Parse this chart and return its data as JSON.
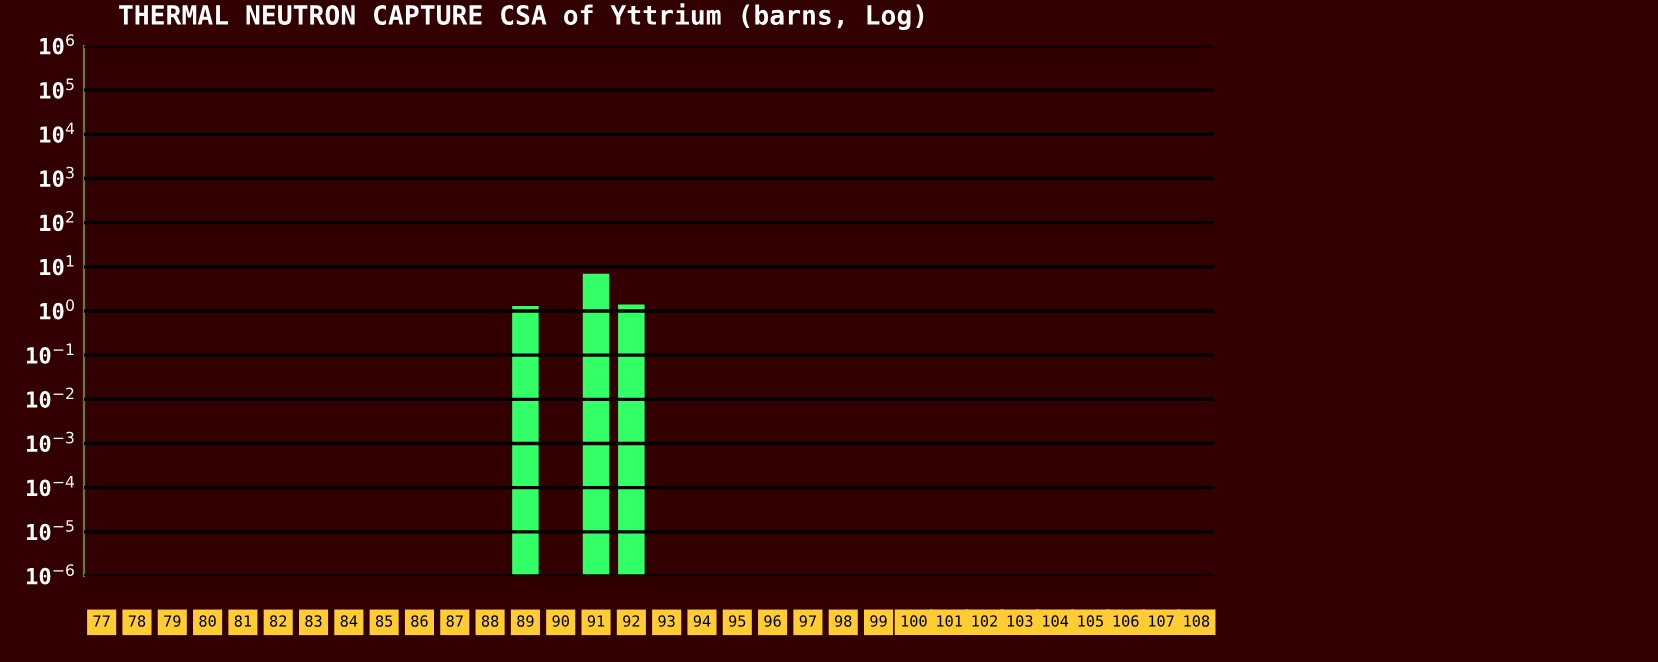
{
  "chart_data": {
    "type": "bar",
    "title": "THERMAL NEUTRON CAPTURE CSA of Yttrium (barns, Log)",
    "categories": [
      "77",
      "78",
      "79",
      "80",
      "81",
      "82",
      "83",
      "84",
      "85",
      "86",
      "87",
      "88",
      "89",
      "90",
      "91",
      "92",
      "93",
      "94",
      "95",
      "96",
      "97",
      "98",
      "99",
      "100",
      "101",
      "102",
      "103",
      "104",
      "105",
      "106",
      "107",
      "108"
    ],
    "values": [
      null,
      null,
      null,
      null,
      null,
      null,
      null,
      null,
      null,
      null,
      null,
      null,
      1.3,
      null,
      7,
      1.4,
      null,
      null,
      null,
      null,
      null,
      null,
      null,
      null,
      null,
      null,
      null,
      null,
      null,
      null,
      null,
      null
    ],
    "color": "#33ff66",
    "log": true,
    "grid": "y",
    "ylim": [
      1e-06,
      1000000.0
    ],
    "yticks": [
      {
        "value": 1e-06,
        "label": "10$^{−6}$"
      },
      {
        "value": 1e-05,
        "label": "10$^{−5}$"
      },
      {
        "value": 0.0001,
        "label": "10$^{−4}$"
      },
      {
        "value": 0.001,
        "label": "10$^{−3}$"
      },
      {
        "value": 0.01,
        "label": "10$^{−2}$"
      },
      {
        "value": 0.1,
        "label": "10$^{−1}$"
      },
      {
        "value": 1,
        "label": "10$^{0}$"
      },
      {
        "value": 10,
        "label": "10$^{1}$"
      },
      {
        "value": 100,
        "label": "10$^{2}$"
      },
      {
        "value": 1000,
        "label": "10$^{3}$"
      },
      {
        "value": 10000,
        "label": "10$^{4}$"
      },
      {
        "value": 100000,
        "label": "10$^{5}$"
      },
      {
        "value": 1000000,
        "label": "10$^{6}$"
      }
    ]
  }
}
